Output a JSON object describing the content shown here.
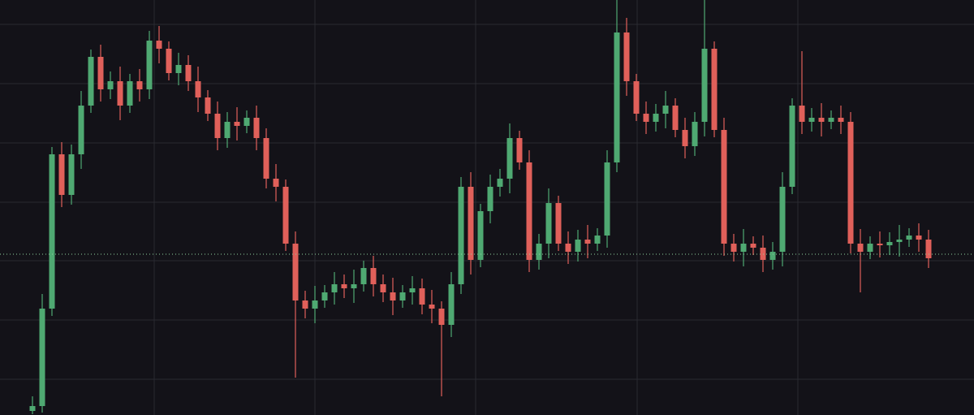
{
  "chart_data": {
    "type": "candlestick",
    "x": [
      40,
      52,
      64,
      76,
      88,
      100,
      112,
      124,
      136,
      148,
      160,
      172,
      184,
      196,
      208,
      220,
      232,
      244,
      256,
      268,
      280,
      292,
      304,
      316,
      328,
      340,
      352,
      364,
      376,
      388,
      400,
      412,
      424,
      436,
      448,
      460,
      472,
      484,
      496,
      508,
      520,
      532,
      544,
      556,
      568,
      580,
      592,
      604,
      616,
      628,
      640,
      652,
      664,
      676,
      688,
      700,
      712,
      724,
      736,
      748,
      760,
      772,
      784,
      796,
      808,
      820,
      832,
      844,
      856,
      868,
      880,
      892,
      904,
      916,
      928,
      940,
      952,
      964,
      976,
      988,
      1000,
      1012,
      1024,
      1036,
      1048,
      1060,
      1072,
      1084,
      1096,
      1108,
      1120,
      1132,
      1144
    ],
    "open": [
      5,
      11,
      131,
      321,
      271,
      321,
      381,
      441,
      401,
      411,
      381,
      411,
      401,
      461,
      451,
      421,
      431,
      411,
      391,
      371,
      341,
      361,
      356,
      366,
      341,
      291,
      281,
      211,
      141,
      131,
      141,
      151,
      161,
      156,
      161,
      181,
      161,
      151,
      141,
      151,
      156,
      136,
      131,
      111,
      161,
      281,
      191,
      251,
      281,
      291,
      341,
      311,
      191,
      211,
      261,
      211,
      201,
      216,
      211,
      221,
      311,
      471,
      411,
      371,
      361,
      371,
      381,
      351,
      331,
      361,
      451,
      351,
      211,
      201,
      211,
      206,
      191,
      201,
      281,
      381,
      361,
      366,
      361,
      366,
      361,
      211,
      201,
      211,
      209,
      213,
      216,
      221,
      216
    ],
    "high": [
      23,
      149,
      330,
      336,
      333,
      399,
      450,
      456,
      423,
      429,
      420,
      426,
      473,
      479,
      460,
      446,
      443,
      429,
      400,
      386,
      373,
      379,
      375,
      381,
      353,
      309,
      290,
      226,
      153,
      159,
      160,
      176,
      173,
      179,
      190,
      196,
      173,
      169,
      160,
      171,
      168,
      154,
      140,
      176,
      293,
      299,
      260,
      296,
      303,
      359,
      350,
      326,
      223,
      279,
      270,
      226,
      228,
      234,
      230,
      326,
      511,
      489,
      420,
      386,
      383,
      399,
      390,
      366,
      373,
      511,
      460,
      366,
      223,
      229,
      220,
      221,
      213,
      299,
      390,
      448,
      378,
      384,
      375,
      381,
      373,
      229,
      220,
      226,
      225,
      234,
      230,
      236,
      228
    ],
    "low": [
      1,
      3,
      122,
      256,
      259,
      303,
      372,
      386,
      389,
      363,
      372,
      386,
      389,
      433,
      412,
      406,
      399,
      373,
      362,
      326,
      329,
      338,
      347,
      326,
      279,
      263,
      202,
      46,
      119,
      113,
      132,
      136,
      144,
      138,
      152,
      146,
      139,
      123,
      132,
      136,
      124,
      113,
      23,
      96,
      149,
      173,
      182,
      236,
      269,
      273,
      302,
      176,
      179,
      193,
      202,
      186,
      189,
      193,
      202,
      206,
      299,
      393,
      362,
      346,
      349,
      353,
      342,
      316,
      319,
      343,
      342,
      196,
      189,
      183,
      197,
      176,
      179,
      183,
      272,
      346,
      349,
      343,
      352,
      346,
      199,
      151,
      192,
      194,
      197,
      195,
      207,
      201,
      181
    ],
    "close": [
      11,
      131,
      321,
      271,
      321,
      381,
      441,
      401,
      411,
      381,
      411,
      401,
      461,
      451,
      421,
      431,
      411,
      391,
      371,
      341,
      361,
      356,
      366,
      341,
      291,
      281,
      211,
      141,
      131,
      141,
      151,
      161,
      156,
      161,
      181,
      161,
      151,
      141,
      151,
      156,
      136,
      131,
      111,
      161,
      281,
      191,
      251,
      281,
      291,
      341,
      311,
      191,
      211,
      261,
      211,
      201,
      216,
      211,
      221,
      311,
      471,
      411,
      371,
      361,
      371,
      381,
      351,
      331,
      361,
      451,
      351,
      211,
      201,
      211,
      206,
      191,
      201,
      281,
      381,
      361,
      366,
      361,
      366,
      361,
      211,
      201,
      211,
      209,
      213,
      216,
      221,
      216,
      193
    ],
    "up_color": "#4fa972",
    "down_color": "#e0605a",
    "xlim": [
      0,
      1200
    ],
    "ylim": [
      0,
      511
    ],
    "xticks": [
      190,
      388,
      586,
      785,
      983
    ],
    "yticks": [
      44,
      117,
      190,
      262,
      335,
      408,
      481
    ],
    "grid": true,
    "price_line": 198,
    "price_line_color": "#8fd19e"
  }
}
